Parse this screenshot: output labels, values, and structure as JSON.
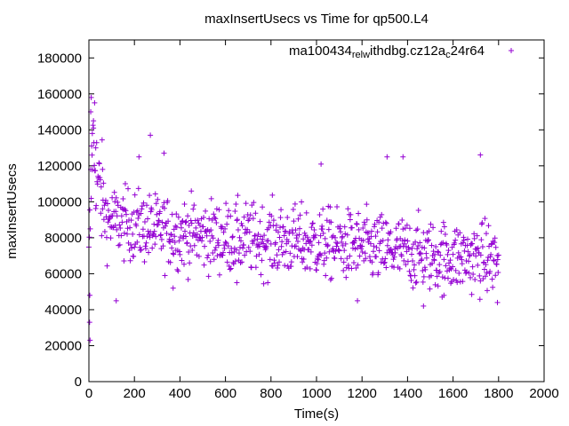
{
  "chart_data": {
    "type": "scatter",
    "title": "maxInsertUsecs vs Time for qp500.L4",
    "xlabel": "Time(s)",
    "ylabel": "maxInsertUsecs",
    "xlim": [
      0,
      2000
    ],
    "ylim": [
      0,
      190000
    ],
    "xticks": [
      0,
      200,
      400,
      600,
      800,
      1000,
      1200,
      1400,
      1600,
      1800,
      2000
    ],
    "yticks": [
      0,
      20000,
      40000,
      60000,
      80000,
      100000,
      120000,
      140000,
      160000,
      180000
    ],
    "grid": false,
    "legend_position": "top-right",
    "marker": "plus",
    "color": "#9400d3",
    "series": [
      {
        "legend_parts": [
          "ma100434",
          "rel",
          "w",
          "ithdbg.cz12a",
          "c",
          "24r64"
        ],
        "x_range": [
          0,
          1800
        ],
        "x_step": 2,
        "trend_points": [
          [
            0,
            60000
          ],
          [
            15,
            135000
          ],
          [
            40,
            110000
          ],
          [
            80,
            90000
          ],
          [
            300,
            84000
          ],
          [
            600,
            80000
          ],
          [
            900,
            78000
          ],
          [
            1200,
            75000
          ],
          [
            1500,
            70000
          ],
          [
            1800,
            68000
          ]
        ],
        "typical_spread": 14000,
        "notable_points": [
          [
            5,
            23000
          ],
          [
            3,
            33000
          ],
          [
            4,
            48000
          ],
          [
            8,
            150000
          ],
          [
            10,
            158000
          ],
          [
            25,
            155000
          ],
          [
            20,
            145000
          ],
          [
            15,
            138000
          ],
          [
            30,
            130000
          ],
          [
            60,
            118000
          ],
          [
            270,
            137000
          ],
          [
            220,
            125000
          ],
          [
            330,
            127000
          ],
          [
            1020,
            121000
          ],
          [
            1310,
            125000
          ],
          [
            1380,
            125000
          ],
          [
            1720,
            126000
          ],
          [
            1795,
            44000
          ],
          [
            1470,
            42000
          ],
          [
            1180,
            45000
          ],
          [
            120,
            45000
          ],
          [
            370,
            52000
          ],
          [
            650,
            55000
          ],
          [
            1560,
            48000
          ]
        ]
      }
    ]
  }
}
